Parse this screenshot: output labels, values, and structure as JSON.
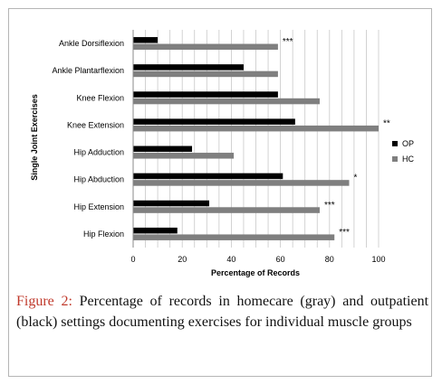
{
  "chart_data": {
    "type": "bar",
    "orientation": "horizontal",
    "categories": [
      "Ankle Dorsiflexion",
      "Ankle Plantarflexion",
      "Knee Flexion",
      "Knee Extension",
      "Hip Adduction",
      "Hip Abduction",
      "Hip Extension",
      "Hip Flexion"
    ],
    "series": [
      {
        "name": "OP",
        "color": "#000000",
        "values": [
          10,
          45,
          59,
          66,
          24,
          61,
          31,
          18
        ]
      },
      {
        "name": "HC",
        "color": "#7f7f7f",
        "values": [
          59,
          59,
          76,
          100,
          41,
          88,
          76,
          82
        ]
      }
    ],
    "annotations": [
      "***",
      "",
      "",
      "**",
      "",
      "*",
      "***",
      "***"
    ],
    "xlabel": "Percentage of Records",
    "ylabel": "Single Joint Exercises",
    "xlim": [
      0,
      100
    ],
    "xticks": [
      "0",
      "20",
      "40",
      "60",
      "80",
      "100"
    ],
    "grid": "vertical",
    "legend": "right"
  },
  "caption": {
    "label": "Figure 2:",
    "text": " Percentage of records in homecare (gray) and outpatient (black) settings documenting exercises for individual muscle groups"
  }
}
